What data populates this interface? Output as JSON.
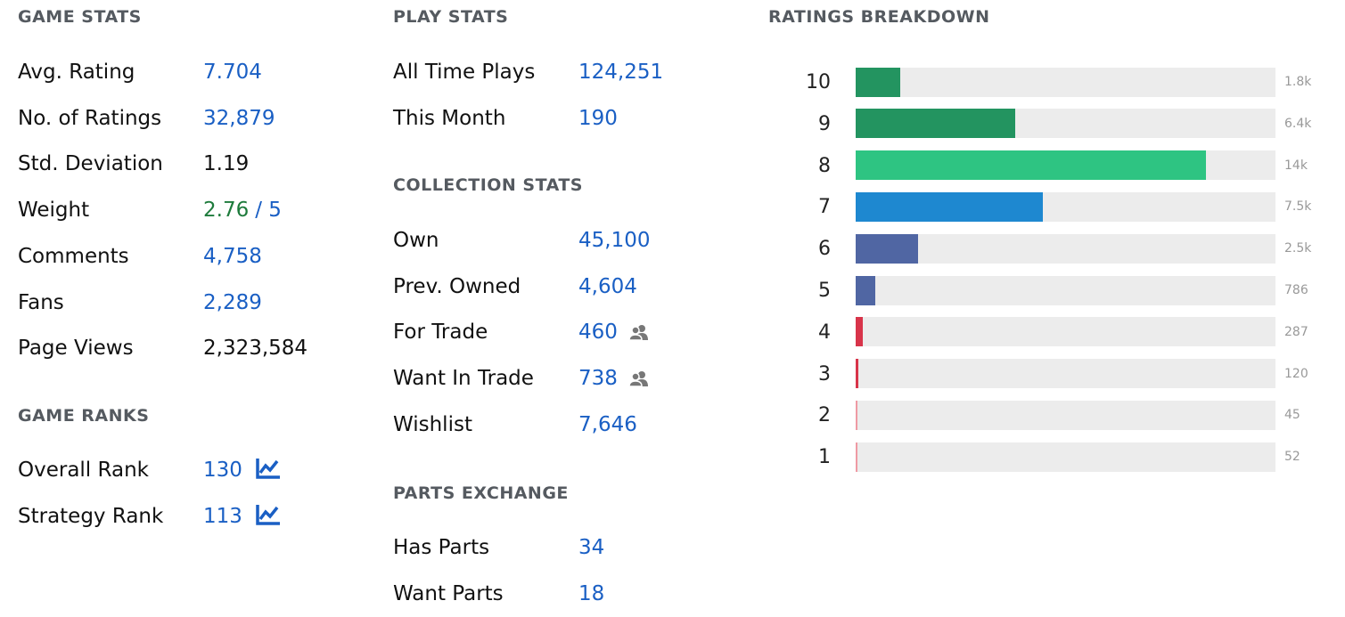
{
  "game_stats": {
    "title": "GAME STATS",
    "rows": [
      {
        "label": "Avg. Rating",
        "value": "7.704",
        "color": "#1a5fc4"
      },
      {
        "label": "No. of Ratings",
        "value": "32,879",
        "color": "#1a5fc4"
      },
      {
        "label": "Std. Deviation",
        "value": "1.19",
        "color": "#111111"
      },
      {
        "label": "Weight",
        "value": "2.76",
        "color": "#1e7b3c",
        "suffix": "/ 5",
        "suffix_color": "#1a5fc4"
      },
      {
        "label": "Comments",
        "value": "4,758",
        "color": "#1a5fc4"
      },
      {
        "label": "Fans",
        "value": "2,289",
        "color": "#1a5fc4"
      },
      {
        "label": "Page Views",
        "value": "2,323,584",
        "color": "#111111"
      }
    ]
  },
  "game_ranks": {
    "title": "GAME RANKS",
    "rows": [
      {
        "label": "Overall Rank",
        "value": "130",
        "color": "#1a5fc4",
        "icon": "chart"
      },
      {
        "label": "Strategy Rank",
        "value": "113",
        "color": "#1a5fc4",
        "icon": "chart"
      }
    ]
  },
  "play_stats": {
    "title": "PLAY STATS",
    "rows": [
      {
        "label": "All Time Plays",
        "value": "124,251",
        "color": "#1a5fc4"
      },
      {
        "label": "This Month",
        "value": "190",
        "color": "#1a5fc4"
      }
    ]
  },
  "collection_stats": {
    "title": "COLLECTION STATS",
    "rows": [
      {
        "label": "Own",
        "value": "45,100",
        "color": "#1a5fc4"
      },
      {
        "label": "Prev. Owned",
        "value": "4,604",
        "color": "#1a5fc4"
      },
      {
        "label": "For Trade",
        "value": "460",
        "color": "#1a5fc4",
        "icon": "people"
      },
      {
        "label": "Want In Trade",
        "value": "738",
        "color": "#1a5fc4",
        "icon": "people"
      },
      {
        "label": "Wishlist",
        "value": "7,646",
        "color": "#1a5fc4"
      }
    ]
  },
  "parts_exchange": {
    "title": "PARTS EXCHANGE",
    "rows": [
      {
        "label": "Has Parts",
        "value": "34",
        "color": "#1a5fc4"
      },
      {
        "label": "Want Parts",
        "value": "18",
        "color": "#1a5fc4"
      }
    ]
  },
  "ratings_breakdown": {
    "title": "RATINGS BREAKDOWN",
    "xlim": [
      0,
      16800
    ],
    "rows": [
      {
        "rating": 10,
        "value": 1800,
        "value_label": "1.8k",
        "color": "#239460"
      },
      {
        "rating": 9,
        "value": 6400,
        "value_label": "6.4k",
        "color": "#239460"
      },
      {
        "rating": 8,
        "value": 14000,
        "value_label": "14k",
        "color": "#2ec482"
      },
      {
        "rating": 7,
        "value": 7500,
        "value_label": "7.5k",
        "color": "#1e88d0"
      },
      {
        "rating": 6,
        "value": 2500,
        "value_label": "2.5k",
        "color": "#5066a3"
      },
      {
        "rating": 5,
        "value": 786,
        "color": "#5066a3"
      },
      {
        "rating": 4,
        "value": 287,
        "color": "#d8344a"
      },
      {
        "rating": 3,
        "value": 120,
        "color": "#d8344a"
      },
      {
        "rating": 2,
        "value": 45,
        "color": "#ef9aa4"
      },
      {
        "rating": 1,
        "value": 52,
        "color": "#ef9aa4"
      }
    ]
  }
}
